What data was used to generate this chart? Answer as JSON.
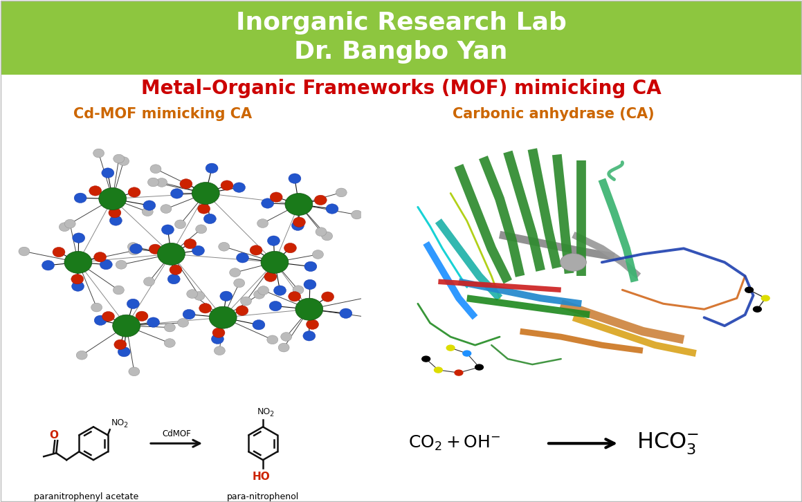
{
  "header_color": "#8DC63F",
  "header_text_line1": "Inorganic Research Lab",
  "header_text_line2": "Dr. Bangbo Yan",
  "header_text_color": "#FFFFFF",
  "header_font_size": 26,
  "bg_color": "#FFFFFF",
  "title_text": "Metal–Organic Frameworks (MOF) mimicking CA",
  "title_color": "#CC0000",
  "title_font_size": 20,
  "left_subtitle": "Cd-MOF mimicking CA",
  "right_subtitle": "Carbonic anhydrase (CA)",
  "subtitle_color": "#CC6600",
  "subtitle_font_size": 15,
  "label_left": "paranitrophenyl acetate",
  "label_right": "para-nitrophenol",
  "label_color": "#000000",
  "label_font_size": 9,
  "cdmof_label": "CdMOF",
  "cdmof_color": "#000000",
  "border_color": "#BBBBBB",
  "border_linewidth": 1.0,
  "cd_color": "#1A7A1A",
  "n_color": "#2255CC",
  "o_color": "#CC2200",
  "c_color": "#BBBBBB",
  "bond_color": "#111111",
  "reaction_font_size": 18
}
